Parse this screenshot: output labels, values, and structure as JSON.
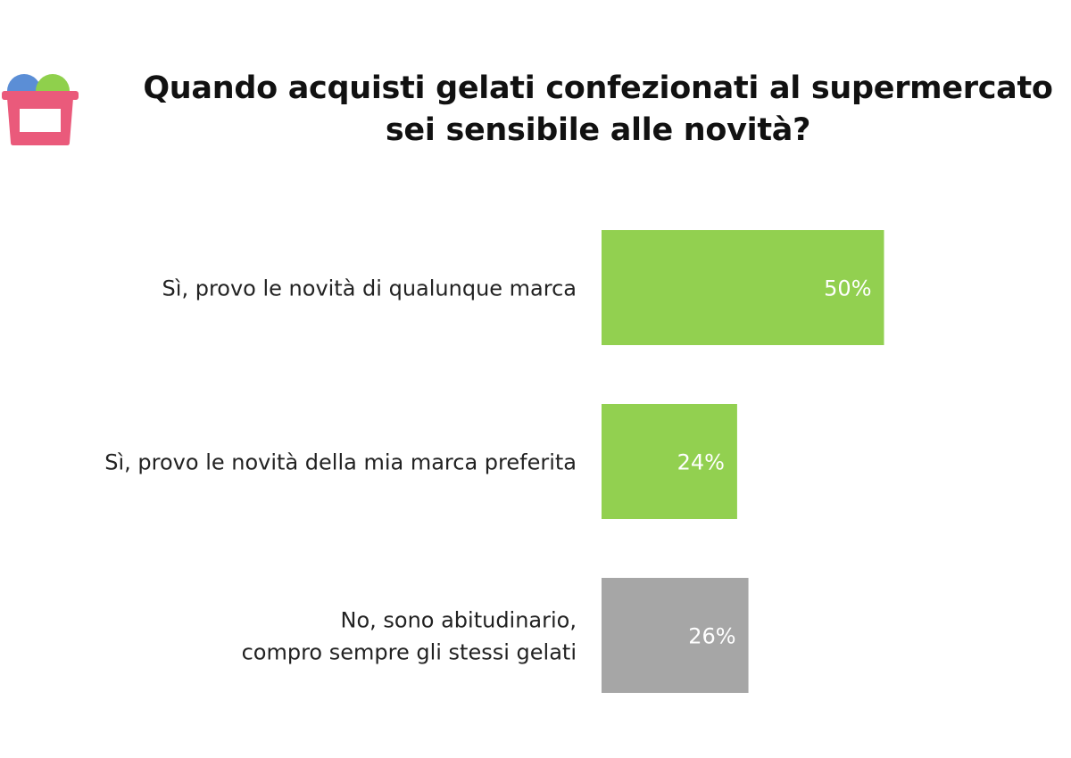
{
  "title_lines": [
    "Quando acquisti gelati confezionati al supermercato",
    "sei sensibile alle novità?"
  ],
  "logo_icon": "ice-cream-basket-icon",
  "chart_data": {
    "type": "bar",
    "orientation": "horizontal",
    "title": "Quando acquisti gelati confezionati al supermercato sei sensibile alle novità?",
    "categories": [
      [
        "Sì, provo le novità di qualunque marca"
      ],
      [
        "Sì, provo le novità della mia marca preferita"
      ],
      [
        "No, sono abitudinario,",
        "compro sempre gli stessi gelati"
      ]
    ],
    "values": [
      50,
      24,
      26
    ],
    "value_labels": [
      "50%",
      "24%",
      "26%"
    ],
    "colors": [
      "#92d050",
      "#92d050",
      "#a6a6a6"
    ],
    "xlim": [
      0,
      100
    ],
    "grid": false,
    "legend": "none"
  }
}
